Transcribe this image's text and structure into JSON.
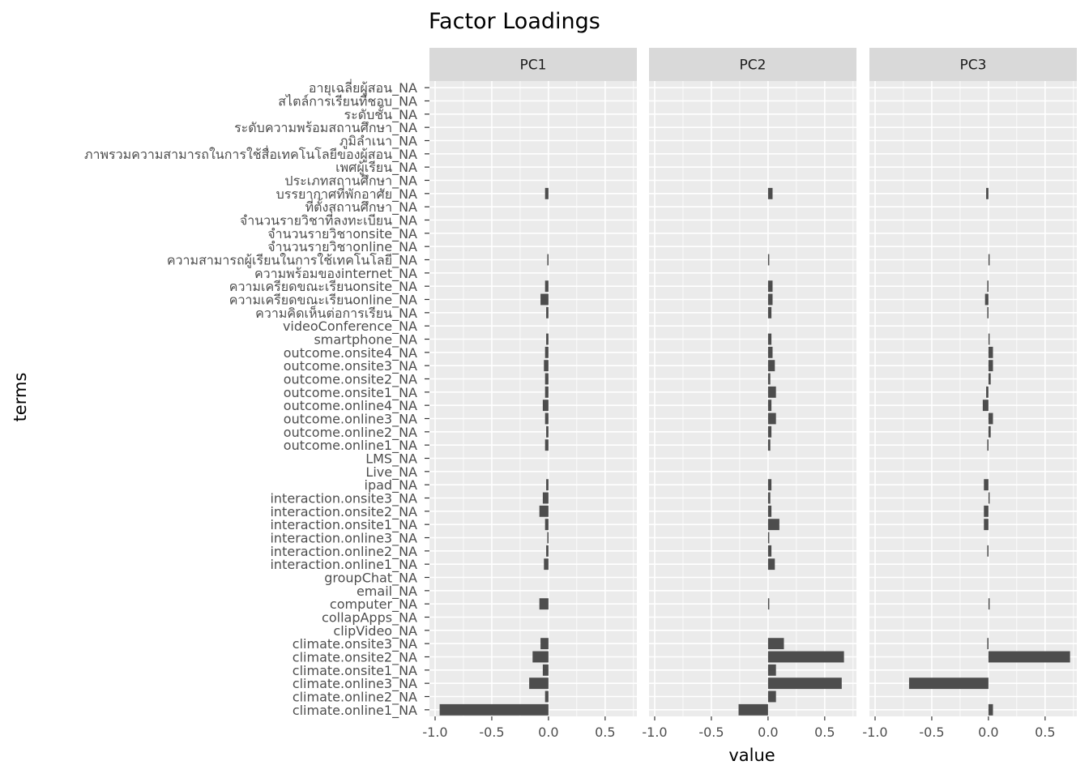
{
  "chart_data": {
    "type": "bar",
    "orientation": "horizontal",
    "title": "Factor Loadings",
    "xlabel": "value",
    "ylabel": "terms",
    "xlim": [
      -1.05,
      0.78
    ],
    "xticks": [
      -1.0,
      -0.5,
      0.0,
      0.5
    ],
    "xtick_labels": [
      "-1.0",
      "-0.5",
      "0.0",
      "0.5"
    ],
    "grid": true,
    "panels": [
      "PC1",
      "PC2",
      "PC3"
    ],
    "categories": [
      "climate.online1_NA",
      "climate.online2_NA",
      "climate.online3_NA",
      "climate.onsite1_NA",
      "climate.onsite2_NA",
      "climate.onsite3_NA",
      "clipVideo_NA",
      "collapApps_NA",
      "computer_NA",
      "email_NA",
      "groupChat_NA",
      "interaction.online1_NA",
      "interaction.online2_NA",
      "interaction.online3_NA",
      "interaction.onsite1_NA",
      "interaction.onsite2_NA",
      "interaction.onsite3_NA",
      "ipad_NA",
      "Live_NA",
      "LMS_NA",
      "outcome.online1_NA",
      "outcome.online2_NA",
      "outcome.online3_NA",
      "outcome.online4_NA",
      "outcome.onsite1_NA",
      "outcome.onsite2_NA",
      "outcome.onsite3_NA",
      "outcome.onsite4_NA",
      "smartphone_NA",
      "videoConference_NA",
      "ความคิดเห็นต่อการเรียน_NA",
      "ความเครียดขณะเรียนonline_NA",
      "ความเครียดขณะเรียนonsite_NA",
      "ความพร้อมของinternet_NA",
      "ความสามารถผู้เรียนในการใช้เทคโนโลยี_NA",
      "จำนวนรายวิชาonline_NA",
      "จำนวนรายวิชาonsite_NA",
      "จำนวนรายวิชาที่ลงทะเบียน_NA",
      "ที่ตั้งสถานศึกษา_NA",
      "บรรยากาศที่พักอาศัย_NA",
      "ประเภทสถานศึกษา_NA",
      "เพศผู้เรียน_NA",
      "ภาพรวมความสามารถในการใช้สื่อเทคโนโลยีของผู้สอน_NA",
      "ภูมิลำเนา_NA",
      "ระดับความพร้อมสถานศึกษา_NA",
      "ระดับชั้น_NA",
      "สไตล์การเรียนที่ชอบ_NA",
      "อายุเฉลี่ยผู้สอน_NA"
    ],
    "series": [
      {
        "name": "PC1",
        "values": [
          -0.96,
          -0.03,
          -0.17,
          -0.05,
          -0.14,
          -0.07,
          0,
          0,
          -0.08,
          0,
          0,
          -0.04,
          -0.02,
          -0.01,
          -0.03,
          -0.08,
          -0.05,
          -0.02,
          0,
          0,
          -0.03,
          -0.02,
          -0.03,
          -0.05,
          -0.03,
          -0.03,
          -0.04,
          -0.03,
          -0.02,
          0,
          -0.02,
          -0.07,
          -0.03,
          0,
          -0.01,
          0,
          0,
          0,
          0,
          -0.03,
          0,
          0,
          0,
          0,
          0,
          0,
          0,
          0
        ]
      },
      {
        "name": "PC2",
        "values": [
          -0.26,
          0.07,
          0.65,
          0.07,
          0.67,
          0.14,
          0,
          0,
          0.01,
          0,
          0,
          0.06,
          0.03,
          0.01,
          0.1,
          0.03,
          0.02,
          0.03,
          0,
          0,
          0.02,
          0.03,
          0.07,
          0.03,
          0.07,
          0.02,
          0.06,
          0.04,
          0.03,
          0,
          0.03,
          0.04,
          0.04,
          0,
          0.01,
          0,
          0,
          0,
          0,
          0.04,
          0,
          0,
          0,
          0,
          0,
          0,
          0,
          0
        ]
      },
      {
        "name": "PC3",
        "values": [
          0.04,
          0,
          -0.7,
          0,
          0.72,
          -0.01,
          0,
          0,
          0.01,
          0,
          0,
          0,
          -0.01,
          0,
          -0.04,
          -0.04,
          0.01,
          -0.04,
          0,
          0,
          -0.01,
          0.02,
          0.04,
          -0.05,
          -0.02,
          0.02,
          0.04,
          0.04,
          0.01,
          0,
          -0.01,
          -0.03,
          -0.01,
          0,
          0.01,
          0,
          0,
          0,
          0,
          -0.02,
          0,
          0,
          0,
          0,
          0,
          0,
          0,
          0
        ]
      }
    ]
  }
}
